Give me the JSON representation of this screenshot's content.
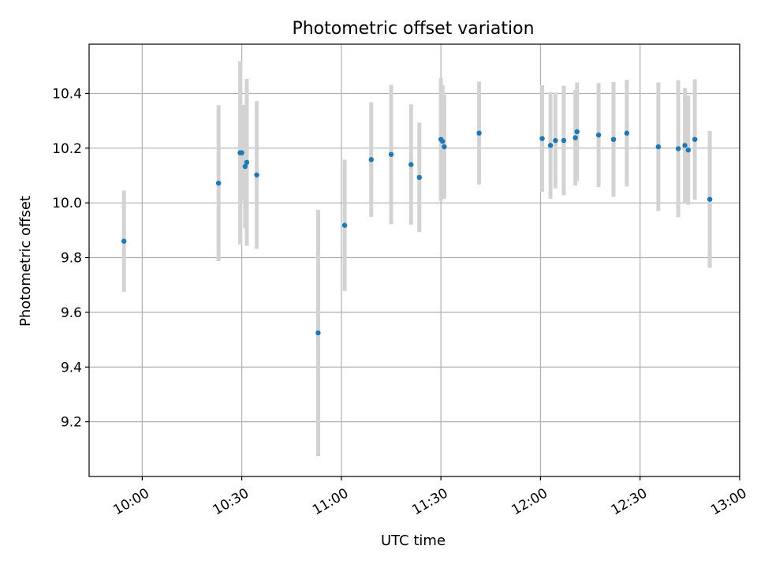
{
  "chart_data": {
    "type": "scatter",
    "title": "Photometric offset variation",
    "xlabel": "UTC time",
    "ylabel": "Photometric offset",
    "xlim": [
      "09:44",
      "13:00"
    ],
    "ylim": [
      9.0,
      10.58
    ],
    "x_ticks": [
      "10:00",
      "10:30",
      "11:00",
      "11:30",
      "12:00",
      "12:30",
      "13:00"
    ],
    "y_ticks": [
      "9.2",
      "9.4",
      "9.6",
      "9.8",
      "10.0",
      "10.2",
      "10.4"
    ],
    "grid": true,
    "point_color": "#1f77b4",
    "errorbar_color": "#d3d3d3",
    "points": [
      {
        "x": "09:54:30",
        "y": 9.86,
        "yerr": 0.185
      },
      {
        "x": "10:23:00",
        "y": 10.072,
        "yerr": 0.285
      },
      {
        "x": "10:29:30",
        "y": 10.183,
        "yerr": 0.335
      },
      {
        "x": "10:30:00",
        "y": 10.183,
        "yerr": 0.175
      },
      {
        "x": "10:31:00",
        "y": 10.133,
        "yerr": 0.225
      },
      {
        "x": "10:31:30",
        "y": 10.148,
        "yerr": 0.305
      },
      {
        "x": "10:34:30",
        "y": 10.102,
        "yerr": 0.27
      },
      {
        "x": "10:53:00",
        "y": 9.525,
        "yerr": 0.45
      },
      {
        "x": "11:01:00",
        "y": 9.918,
        "yerr": 0.24
      },
      {
        "x": "11:09:00",
        "y": 10.158,
        "yerr": 0.21
      },
      {
        "x": "11:15:00",
        "y": 10.177,
        "yerr": 0.255
      },
      {
        "x": "11:21:00",
        "y": 10.14,
        "yerr": 0.22
      },
      {
        "x": "11:23:30",
        "y": 10.093,
        "yerr": 0.2
      },
      {
        "x": "11:30:00",
        "y": 10.232,
        "yerr": 0.225
      },
      {
        "x": "11:30:30",
        "y": 10.225,
        "yerr": 0.205
      },
      {
        "x": "11:31:00",
        "y": 10.205,
        "yerr": 0.19
      },
      {
        "x": "11:41:30",
        "y": 10.255,
        "yerr": 0.188
      },
      {
        "x": "12:00:30",
        "y": 10.235,
        "yerr": 0.195
      },
      {
        "x": "12:03:00",
        "y": 10.21,
        "yerr": 0.195
      },
      {
        "x": "12:04:30",
        "y": 10.228,
        "yerr": 0.175
      },
      {
        "x": "12:07:00",
        "y": 10.228,
        "yerr": 0.2
      },
      {
        "x": "12:10:30",
        "y": 10.238,
        "yerr": 0.175
      },
      {
        "x": "12:11:00",
        "y": 10.26,
        "yerr": 0.18
      },
      {
        "x": "12:17:30",
        "y": 10.248,
        "yerr": 0.19
      },
      {
        "x": "12:22:00",
        "y": 10.232,
        "yerr": 0.21
      },
      {
        "x": "12:26:00",
        "y": 10.255,
        "yerr": 0.195
      },
      {
        "x": "12:35:30",
        "y": 10.205,
        "yerr": 0.235
      },
      {
        "x": "12:41:30",
        "y": 10.198,
        "yerr": 0.25
      },
      {
        "x": "12:43:30",
        "y": 10.21,
        "yerr": 0.21
      },
      {
        "x": "12:44:30",
        "y": 10.193,
        "yerr": 0.2
      },
      {
        "x": "12:46:30",
        "y": 10.232,
        "yerr": 0.22
      },
      {
        "x": "12:51:00",
        "y": 10.013,
        "yerr": 0.25
      }
    ]
  }
}
